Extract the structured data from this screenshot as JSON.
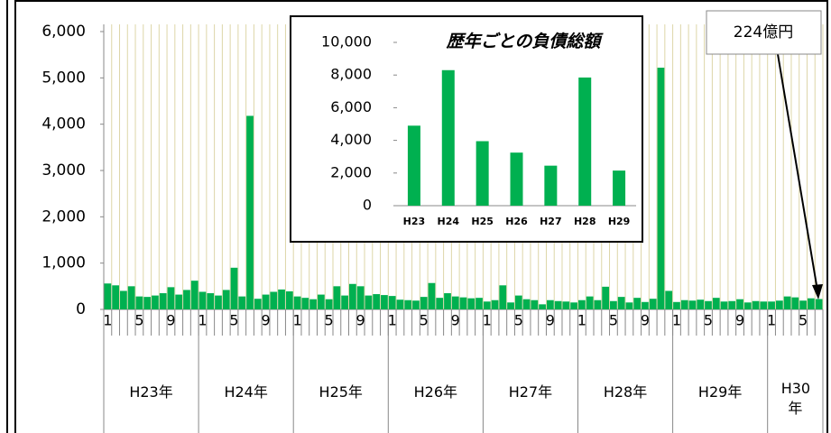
{
  "chart_data": [
    {
      "type": "bar",
      "color": "#00b050",
      "categories": [
        "1",
        null,
        null,
        null,
        "5",
        null,
        null,
        null,
        "9",
        null,
        null,
        null,
        "1",
        null,
        null,
        null,
        "5",
        null,
        null,
        null,
        "9",
        null,
        null,
        null,
        "1",
        null,
        null,
        null,
        "5",
        null,
        null,
        null,
        "9",
        null,
        null,
        null,
        "1",
        null,
        null,
        null,
        "5",
        null,
        null,
        null,
        "9",
        null,
        null,
        null,
        "1",
        null,
        null,
        null,
        "5",
        null,
        null,
        null,
        "9",
        null,
        null,
        null,
        "1",
        null,
        null,
        null,
        "5",
        null,
        null,
        null,
        "9",
        null,
        null,
        null,
        "1",
        null,
        null,
        null,
        "5",
        null,
        null,
        null,
        "9",
        null,
        null,
        null,
        "1",
        null,
        null,
        null,
        "5",
        null,
        null
      ],
      "groups": [
        "H23年",
        "H24年",
        "H25年",
        "H26年",
        "H27年",
        "H28年",
        "H29年",
        "H30年"
      ],
      "values": [
        560,
        520,
        400,
        500,
        280,
        270,
        300,
        350,
        480,
        320,
        420,
        620,
        380,
        350,
        300,
        420,
        900,
        280,
        4180,
        230,
        320,
        380,
        430,
        390,
        280,
        250,
        220,
        320,
        220,
        500,
        300,
        550,
        500,
        300,
        330,
        310,
        290,
        210,
        200,
        190,
        270,
        570,
        250,
        350,
        280,
        260,
        240,
        250,
        170,
        200,
        520,
        150,
        300,
        220,
        200,
        110,
        200,
        180,
        170,
        150,
        200,
        280,
        200,
        490,
        180,
        270,
        150,
        250,
        160,
        230,
        5220,
        400,
        160,
        200,
        190,
        210,
        180,
        250,
        170,
        180,
        220,
        150,
        180,
        170,
        170,
        190,
        280,
        260,
        190,
        240,
        224
      ],
      "ylim": [
        0,
        6000
      ],
      "yticks": [
        0,
        {
          "value": 1000,
          "label": "1,000"
        },
        {
          "value": 2000,
          "label": "2,000"
        },
        {
          "value": 3000,
          "label": "3,000"
        },
        {
          "value": 4000,
          "label": "4,000"
        },
        {
          "value": 5000,
          "label": "5,000"
        },
        {
          "value": 6000,
          "label": "6,000"
        }
      ],
      "grid": true,
      "annotation": "224億円"
    },
    {
      "type": "bar",
      "title": "歴年ごとの負債総額",
      "color": "#00b050",
      "categories": [
        "H23",
        "H24",
        "H25",
        "H26",
        "H27",
        "H28",
        "H29"
      ],
      "values": [
        4900,
        8300,
        3950,
        3250,
        2450,
        7850,
        2150
      ],
      "ylim": [
        0,
        10000
      ],
      "yticks": [
        0,
        {
          "value": 2000,
          "label": "2,000"
        },
        {
          "value": 4000,
          "label": "4,000"
        },
        {
          "value": 6000,
          "label": "6,000"
        },
        {
          "value": 8000,
          "label": "8,000"
        },
        {
          "value": 10000,
          "label": "10,000"
        }
      ]
    }
  ]
}
